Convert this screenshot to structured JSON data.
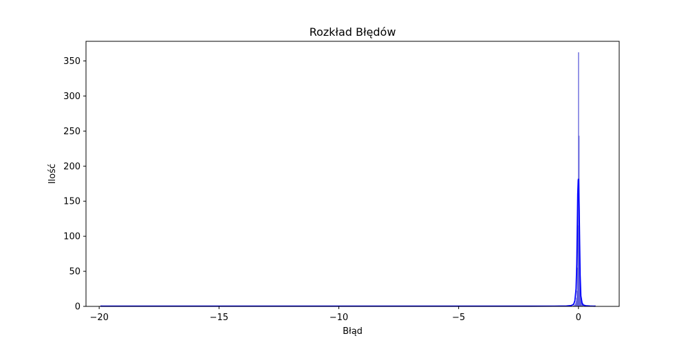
{
  "chart_data": {
    "type": "bar",
    "title": "Rozkład Błędów",
    "xlabel": "Błąd",
    "ylabel": "Ilość",
    "xlim": [
      -20.55,
      1.7
    ],
    "ylim": [
      0,
      378
    ],
    "grid": false,
    "legend": "none",
    "x_ticks": [
      {
        "value": -20,
        "label": "−20"
      },
      {
        "value": -15,
        "label": "−15"
      },
      {
        "value": -10,
        "label": "−10"
      },
      {
        "value": -5,
        "label": "−5"
      },
      {
        "value": 0,
        "label": "0"
      }
    ],
    "y_ticks": [
      0,
      50,
      100,
      150,
      200,
      250,
      300,
      350
    ],
    "series": [
      {
        "kind": "histogram",
        "color": "#7b7bea",
        "edge_color": "#5555d5",
        "bin_width": 0.02,
        "bins": [
          {
            "x": -0.2,
            "count": 1
          },
          {
            "x": -0.16,
            "count": 2
          },
          {
            "x": -0.12,
            "count": 4
          },
          {
            "x": -0.1,
            "count": 7
          },
          {
            "x": -0.08,
            "count": 12
          },
          {
            "x": -0.06,
            "count": 22
          },
          {
            "x": -0.04,
            "count": 55
          },
          {
            "x": -0.02,
            "count": 115
          },
          {
            "x": 0.0,
            "count": 362
          },
          {
            "x": 0.02,
            "count": 243
          },
          {
            "x": 0.04,
            "count": 110
          },
          {
            "x": 0.06,
            "count": 50
          },
          {
            "x": 0.08,
            "count": 25
          },
          {
            "x": 0.1,
            "count": 12
          },
          {
            "x": 0.12,
            "count": 8
          },
          {
            "x": 0.14,
            "count": 5
          },
          {
            "x": 0.18,
            "count": 3
          },
          {
            "x": 0.24,
            "count": 2
          },
          {
            "x": 0.3,
            "count": 1
          },
          {
            "x": 0.4,
            "count": 1
          },
          {
            "x": 0.55,
            "count": 1
          },
          {
            "x": 0.7,
            "count": 1
          },
          {
            "x": -19.9,
            "count": 1
          }
        ]
      },
      {
        "kind": "kde",
        "color": "#0000ff",
        "x": [
          -19.95,
          -15,
          -10,
          -5,
          -2,
          -1,
          -0.5,
          -0.3,
          -0.2,
          -0.15,
          -0.1,
          -0.07,
          -0.05,
          -0.03,
          -0.01,
          0.0,
          0.01,
          0.03,
          0.05,
          0.07,
          0.1,
          0.15,
          0.2,
          0.3,
          0.5,
          0.7
        ],
        "y": [
          0.3,
          0.3,
          0.3,
          0.3,
          0.3,
          0.4,
          0.6,
          1.2,
          3,
          8,
          25,
          60,
          110,
          160,
          180,
          182,
          175,
          140,
          90,
          45,
          15,
          5,
          2,
          1,
          0.5,
          0.3
        ]
      }
    ]
  }
}
